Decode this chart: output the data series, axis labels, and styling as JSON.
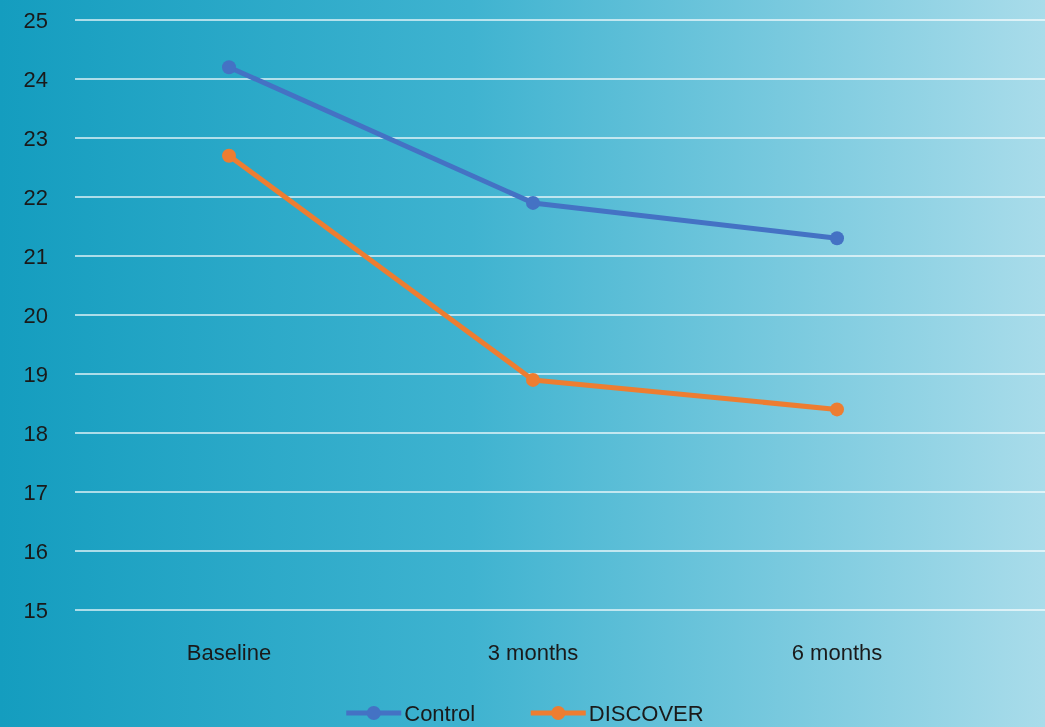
{
  "chart_data": {
    "type": "line",
    "categories": [
      "Baseline",
      "3 months",
      "6 months"
    ],
    "series": [
      {
        "name": "Control",
        "color": "#4472c4",
        "values": [
          24.2,
          21.9,
          21.3
        ]
      },
      {
        "name": "DISCOVER",
        "color": "#ed7d31",
        "values": [
          22.7,
          18.9,
          18.4
        ]
      }
    ],
    "ylim": [
      15,
      25
    ],
    "yticks": [
      15,
      16,
      17,
      18,
      19,
      20,
      21,
      22,
      23,
      24,
      25
    ],
    "grid": "y",
    "legend": "bottom",
    "marker": "circle",
    "line_style": "solid"
  }
}
